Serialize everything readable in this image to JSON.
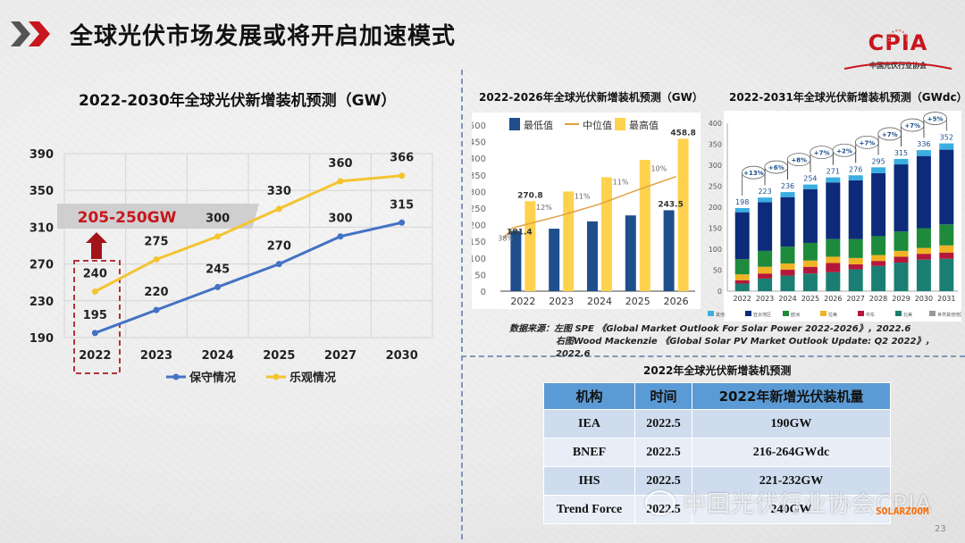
{
  "slide": {
    "title": "全球光伏市场发展或将开启加速模式",
    "logo_text": "CPIA",
    "logo_subtitle": "中国光伏行业协会",
    "page_number": "23",
    "watermark": "中国光伏行业协会CPIA",
    "watermark_brand": "SOLARZOOM",
    "colors": {
      "accent_red": "#c8161d",
      "chevron_gray": "#555555",
      "divider_blue": "#7f96b8"
    }
  },
  "highlight": {
    "label": "205-250GW",
    "year": "2022"
  },
  "source": {
    "line1": "数据来源：左图    SPE 《Global Market Outlook For Solar Power 2022-2026》，2022.6",
    "line2": "右图Wood Mackenzie 《Global Solar PV Market Outlook Update: Q2 2022》，2022.6"
  },
  "table": {
    "title": "2022年全球光伏新增装机预测",
    "headers": [
      "机构",
      "时间",
      "2022年新增光伏装机量"
    ],
    "rows": [
      [
        "IEA",
        "2022.5",
        "190GW"
      ],
      [
        "BNEF",
        "2022.5",
        "216-264GWdc"
      ],
      [
        "IHS",
        "2022.5",
        "221-232GW"
      ],
      [
        "Trend Force",
        "2022.5",
        "240GW"
      ]
    ]
  },
  "chart_data": [
    {
      "type": "line",
      "title": "2022-2030年全球光伏新增装机预测（GW）",
      "categories": [
        "2022",
        "2023",
        "2024",
        "2025",
        "2027",
        "2030"
      ],
      "series": [
        {
          "name": "保守情况",
          "color": "#4472c4",
          "values": [
            195,
            220,
            245,
            270,
            300,
            315
          ]
        },
        {
          "name": "乐观情况",
          "color": "#f4c430",
          "values": [
            240,
            275,
            300,
            330,
            360,
            366
          ]
        }
      ],
      "yticks": [
        190,
        230,
        270,
        310,
        350,
        390
      ],
      "ylim": [
        190,
        390
      ],
      "grid": true,
      "legend": "bottom"
    },
    {
      "type": "bar",
      "title": "2022-2026年全球光伏新增装机预测（GW）",
      "categories": [
        "2022",
        "2023",
        "2024",
        "2025",
        "2026"
      ],
      "series": [
        {
          "name": "最低值",
          "color": "#1f4e8c",
          "values": [
            181.4,
            188,
            210,
            228,
            243.5
          ]
        },
        {
          "name": "最高值",
          "color": "#ffd24d",
          "values": [
            270.8,
            300,
            343,
            395,
            458.8
          ]
        },
        {
          "name": "中位值",
          "color": "#e0a040",
          "type": "line",
          "values": [
            190,
            228,
            262,
            305,
            345
          ],
          "labels": [
            "38%",
            "12%",
            "11%",
            "11%",
            "10%"
          ]
        }
      ],
      "data_labels": {
        "min_2022": "181.4",
        "max_2022": "270.8",
        "min_2026": "243.5",
        "max_2026": "458.8"
      },
      "yticks": [
        0,
        50,
        100,
        150,
        200,
        250,
        300,
        350,
        400,
        450,
        500
      ],
      "ylim": [
        0,
        500
      ],
      "legend": "top"
    },
    {
      "type": "bar",
      "stacked": true,
      "title": "2022-2031年全球光伏新增装机预测（GWdc）",
      "categories": [
        "2022",
        "2023",
        "2024",
        "2025",
        "2026",
        "2027",
        "2028",
        "2029",
        "2030",
        "2031"
      ],
      "totals": [
        198,
        223,
        236,
        254,
        271,
        276,
        295,
        315,
        336,
        352
      ],
      "growth_labels": [
        "+13%",
        "+6%",
        "+8%",
        "+7%",
        "+2%",
        "+7%",
        "+7%",
        "+7%",
        "+5%"
      ],
      "series": [
        {
          "name": "北美",
          "color": "#1a7f72",
          "values": [
            18,
            30,
            37,
            42,
            45,
            52,
            60,
            68,
            75,
            77
          ]
        },
        {
          "name": "中东",
          "color": "#b5173a",
          "values": [
            8,
            12,
            14,
            16,
            22,
            12,
            12,
            14,
            14,
            15
          ]
        },
        {
          "name": "拉美",
          "color": "#f0b323",
          "values": [
            14,
            16,
            15,
            15,
            15,
            15,
            14,
            14,
            14,
            17
          ]
        },
        {
          "name": "欧洲",
          "color": "#1e8a3c",
          "values": [
            36,
            38,
            40,
            42,
            42,
            45,
            45,
            46,
            47,
            50
          ]
        },
        {
          "name": "亚太地区",
          "color": "#0d2b7a",
          "values": [
            112,
            116,
            118,
            128,
            135,
            140,
            150,
            160,
            172,
            178
          ]
        },
        {
          "name": "其他",
          "color": "#3aaee0",
          "values": [
            10,
            11,
            12,
            11,
            12,
            12,
            14,
            13,
            14,
            15
          ]
        }
      ],
      "yticks": [
        0,
        50,
        100,
        150,
        200,
        250,
        300,
        350,
        400
      ],
      "ylim": [
        0,
        400
      ],
      "legend": "bottom",
      "legend_extra": "世界其他地区"
    }
  ]
}
